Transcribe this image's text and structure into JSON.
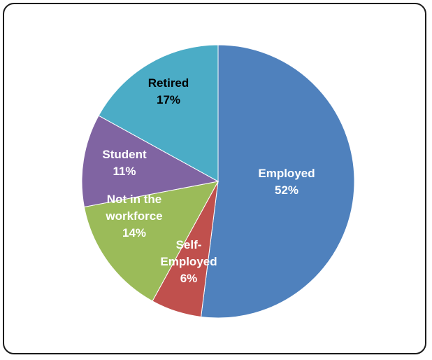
{
  "chart_data": {
    "type": "pie",
    "title": "",
    "slices": [
      {
        "label_lines": [
          "Employed",
          "52%"
        ],
        "value": 52,
        "color": "#4f81bd",
        "text_color": "#ffffff"
      },
      {
        "label_lines": [
          "Self-",
          "Employed",
          "6%"
        ],
        "value": 6,
        "color": "#c0504d",
        "text_color": "#ffffff"
      },
      {
        "label_lines": [
          "Not in the",
          "workforce",
          "14%"
        ],
        "value": 14,
        "color": "#9bbb59",
        "text_color": "#ffffff"
      },
      {
        "label_lines": [
          "Student",
          "11%"
        ],
        "value": 11,
        "color": "#8064a2",
        "text_color": "#ffffff"
      },
      {
        "label_lines": [
          "Retired",
          "17%"
        ],
        "value": 17,
        "color": "#4bacc6",
        "text_color": "#000000"
      }
    ],
    "start_angle": "12 o'clock",
    "direction": "clockwise",
    "legend": "none"
  }
}
